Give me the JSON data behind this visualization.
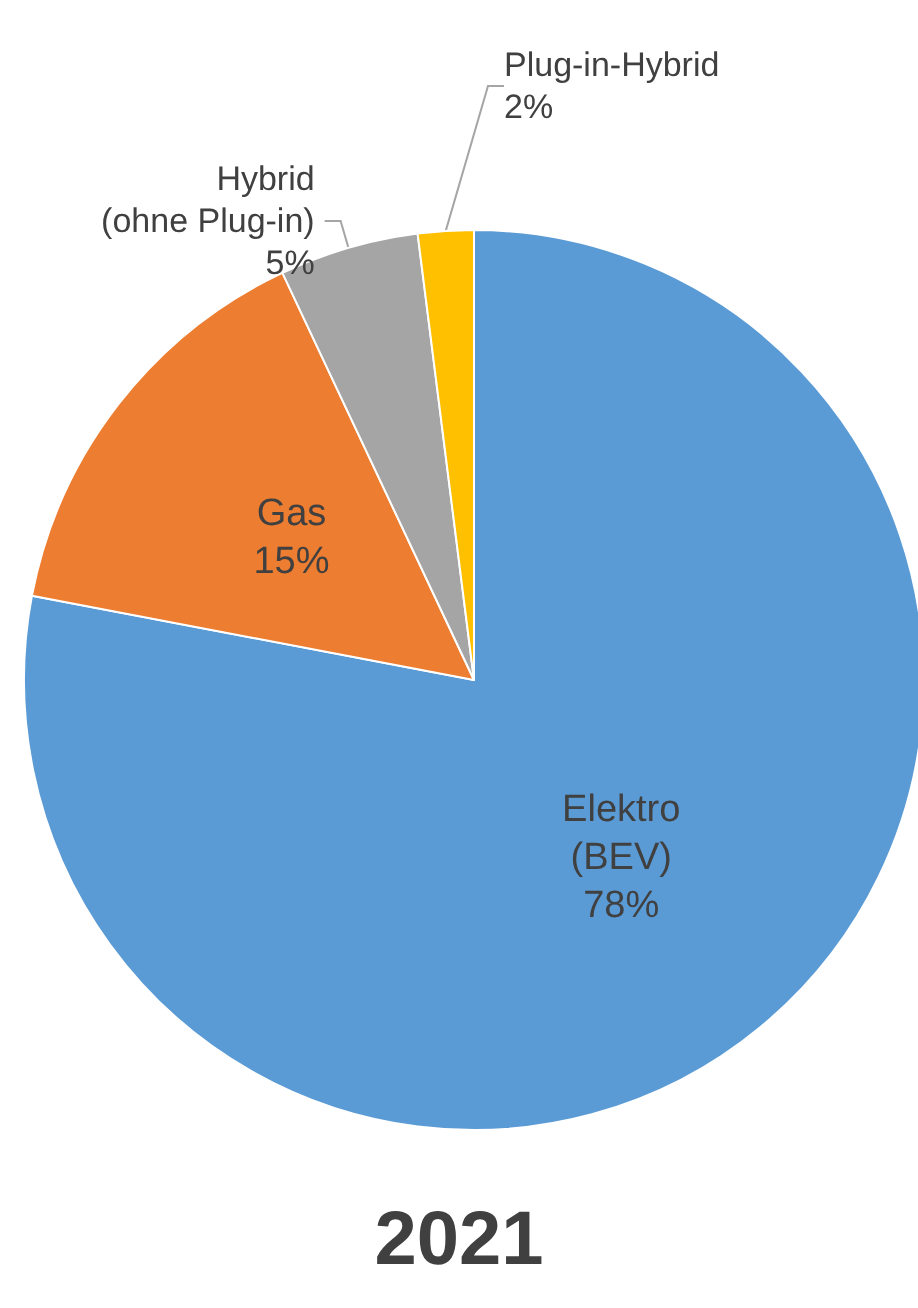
{
  "chart_data": {
    "type": "pie",
    "title": "2021",
    "categories": [
      "Elektro (BEV)",
      "Gas",
      "Hybrid (ohne Plug-in)",
      "Plug-in-Hybrid"
    ],
    "values": [
      78,
      15,
      5,
      2
    ],
    "value_labels": [
      "78%",
      "15%",
      "5%",
      "2%"
    ],
    "colors": [
      "#5b9bd5",
      "#ed7d31",
      "#a5a5a5",
      "#ffc000"
    ],
    "legend": false
  }
}
